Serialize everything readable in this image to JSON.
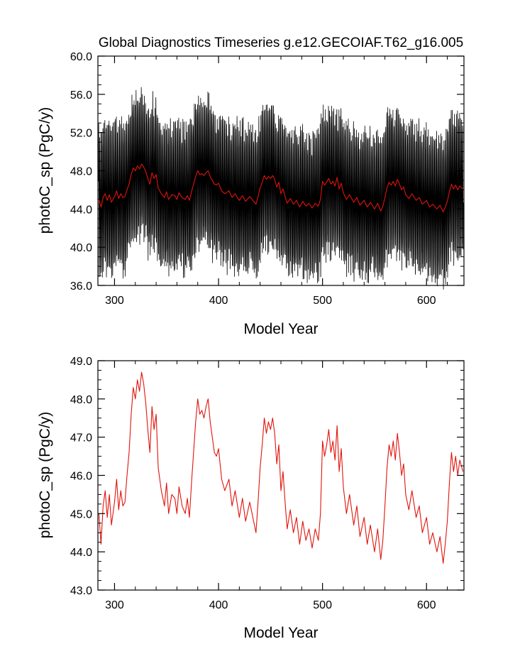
{
  "figure": {
    "title": "Global Diagnostics Timeseries g.e12.GECOIAF.T62_g16.005"
  },
  "colors": {
    "monthly_line": "#000000",
    "annual_line": "#e0140c",
    "axes": "#000000",
    "background": "#ffffff"
  },
  "chart_data": [
    {
      "type": "line",
      "panel": "top",
      "title": "Global Diagnostics Timeseries g.e12.GECOIAF.T62_g16.005",
      "xlabel": "Model Year",
      "ylabel": "photoC_sp (PgC/y)",
      "xlim": [
        284,
        636
      ],
      "ylim": [
        36.0,
        60.0
      ],
      "xticks": [
        300,
        400,
        500,
        600
      ],
      "xtick_labels": [
        "300",
        "400",
        "500",
        "600"
      ],
      "yticks": [
        36,
        40,
        44,
        48,
        52,
        56,
        60
      ],
      "ytick_labels": [
        "36.0",
        "40.0",
        "44.0",
        "48.0",
        "52.0",
        "56.0",
        "60.0"
      ],
      "series": [
        {
          "name": "monthly",
          "color": "#000000",
          "description": "monthly values oscillating around the annual mean with a seasonal amplitude of about 6-8 PgC/y (range ~37.5 to ~57)",
          "envelope_halfwidth": [
            6.5,
            7.5
          ]
        },
        {
          "name": "annual mean",
          "color": "#e0140c",
          "x_start": 285,
          "x_end": 635,
          "values_ref": "chart_data.1.series.0.values"
        }
      ]
    },
    {
      "type": "line",
      "panel": "bottom",
      "title": "",
      "xlabel": "Model Year",
      "ylabel": "photoC_sp (PgC/y)",
      "xlim": [
        284,
        636
      ],
      "ylim": [
        43.0,
        49.0
      ],
      "xticks": [
        300,
        400,
        500,
        600
      ],
      "xtick_labels": [
        "300",
        "400",
        "500",
        "600"
      ],
      "yticks": [
        43,
        44,
        45,
        46,
        47,
        48,
        49
      ],
      "ytick_labels": [
        "43.0",
        "44.0",
        "45.0",
        "46.0",
        "47.0",
        "48.0",
        "49.0"
      ],
      "series": [
        {
          "name": "annual mean",
          "color": "#e0140c",
          "x_start": 285,
          "x_end": 635,
          "anchor_years": [
            285,
            287,
            289,
            291,
            293,
            295,
            297,
            300,
            302,
            304,
            306,
            308,
            310,
            312,
            314,
            316,
            318,
            320,
            322,
            324,
            326,
            328,
            330,
            332,
            334,
            336,
            338,
            340,
            342,
            345,
            348,
            350,
            352,
            355,
            358,
            360,
            362,
            365,
            368,
            370,
            372,
            374,
            376,
            378,
            380,
            382,
            384,
            386,
            388,
            390,
            392,
            394,
            396,
            398,
            400,
            403,
            406,
            410,
            413,
            416,
            420,
            423,
            426,
            430,
            433,
            436,
            438,
            440,
            442,
            444,
            446,
            448,
            450,
            452,
            454,
            456,
            458,
            460,
            462,
            464,
            466,
            469,
            472,
            475,
            478,
            481,
            484,
            487,
            490,
            493,
            496,
            498,
            500,
            502,
            504,
            506,
            508,
            510,
            512,
            514,
            516,
            518,
            520,
            523,
            526,
            530,
            533,
            536,
            540,
            543,
            546,
            550,
            553,
            556,
            558,
            560,
            562,
            564,
            566,
            568,
            570,
            572,
            574,
            576,
            578,
            580,
            583,
            586,
            590,
            593,
            596,
            600,
            603,
            606,
            610,
            613,
            616,
            618,
            620,
            622,
            624,
            626,
            628,
            630,
            632,
            635
          ],
          "anchor_values": [
            45.0,
            44.2,
            45.2,
            45.6,
            44.9,
            45.5,
            44.7,
            45.3,
            45.9,
            45.1,
            45.6,
            45.2,
            45.3,
            46.0,
            46.6,
            47.6,
            48.3,
            48.0,
            48.5,
            48.2,
            48.7,
            48.4,
            47.9,
            47.2,
            46.6,
            47.8,
            47.2,
            47.6,
            46.2,
            45.6,
            45.2,
            45.8,
            45.0,
            45.5,
            45.4,
            45.0,
            45.7,
            45.2,
            45.0,
            45.4,
            44.9,
            45.8,
            46.6,
            47.4,
            48.0,
            47.6,
            47.7,
            47.5,
            47.8,
            48.0,
            47.4,
            47.0,
            46.6,
            46.5,
            46.7,
            45.9,
            45.6,
            45.9,
            45.2,
            45.6,
            44.9,
            45.4,
            44.8,
            45.3,
            44.9,
            44.5,
            45.3,
            46.2,
            46.8,
            47.5,
            47.1,
            47.4,
            47.2,
            47.5,
            47.1,
            46.3,
            46.8,
            45.6,
            46.1,
            45.3,
            44.6,
            45.1,
            44.5,
            44.9,
            44.2,
            44.8,
            44.3,
            44.6,
            44.1,
            44.6,
            44.3,
            45.0,
            46.9,
            46.5,
            46.8,
            47.2,
            46.6,
            46.9,
            46.4,
            47.3,
            46.1,
            46.7,
            45.7,
            45.0,
            45.5,
            44.7,
            45.2,
            44.4,
            44.9,
            44.2,
            44.7,
            44.0,
            44.6,
            43.8,
            44.3,
            45.2,
            46.2,
            46.8,
            46.5,
            46.9,
            46.4,
            47.1,
            46.6,
            46.0,
            46.3,
            45.5,
            45.1,
            45.6,
            44.9,
            45.2,
            44.5,
            44.9,
            44.2,
            44.5,
            44.0,
            44.4,
            43.7,
            44.2,
            44.8,
            45.8,
            46.6,
            46.1,
            46.5,
            46.0,
            46.4,
            46.1
          ]
        }
      ]
    }
  ]
}
